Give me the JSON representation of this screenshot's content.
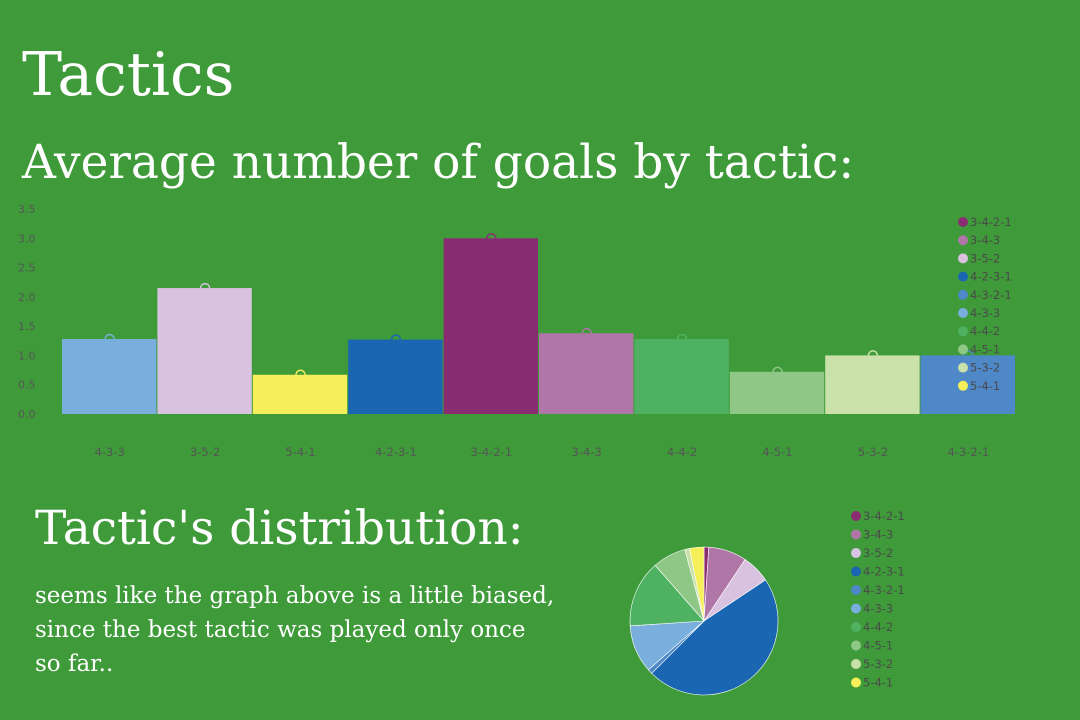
{
  "page": {
    "title": "Tactics",
    "bar_heading": "Average number of goals by tactic:",
    "pie_heading": "Tactic's distribution:",
    "note": "seems like the graph above is a little biased, since the best tactic was played only once so far.."
  },
  "palette": {
    "3-4-2-1": "#8a2c72",
    "3-4-3": "#b076a8",
    "3-5-2": "#d8c2e0",
    "4-2-3-1": "#1b66b2",
    "4-3-2-1": "#4f88c8",
    "4-3-3": "#7aaedd",
    "4-4-2": "#4eb262",
    "4-5-1": "#8ec786",
    "5-3-2": "#cae2aa",
    "5-4-1": "#f5ef5a"
  },
  "chart_data": [
    {
      "type": "bar",
      "categories": [
        "4-3-3",
        "3-5-2",
        "5-4-1",
        "4-2-3-1",
        "3-4-2-1",
        "3-4-3",
        "4-4-2",
        "4-5-1",
        "5-3-2",
        "4-3-2-1"
      ],
      "values": [
        1.28,
        2.15,
        0.67,
        1.27,
        3.0,
        1.38,
        1.28,
        0.72,
        1.0,
        1.0
      ],
      "y_ticks": [
        "0.0",
        "0.5",
        "1.0",
        "1.5",
        "2.0",
        "2.5",
        "3.0",
        "3.5"
      ],
      "ylim": [
        0,
        3.5
      ],
      "legend": [
        "3-4-2-1",
        "3-4-3",
        "3-5-2",
        "4-2-3-1",
        "4-3-2-1",
        "4-3-3",
        "4-4-2",
        "4-5-1",
        "5-3-2",
        "5-4-1"
      ],
      "legend_position": "right",
      "grid": false
    },
    {
      "type": "pie",
      "categories": [
        "3-4-2-1",
        "3-4-3",
        "3-5-2",
        "4-2-3-1",
        "4-3-2-1",
        "4-3-3",
        "4-4-2",
        "4-5-1",
        "5-3-2",
        "5-4-1"
      ],
      "values": [
        1,
        8,
        6,
        45,
        1,
        10,
        14,
        7,
        1,
        3
      ],
      "legend": [
        "3-4-2-1",
        "3-4-3",
        "3-5-2",
        "4-2-3-1",
        "4-3-2-1",
        "4-3-3",
        "4-4-2",
        "4-5-1",
        "5-3-2",
        "5-4-1"
      ],
      "legend_position": "right"
    }
  ]
}
